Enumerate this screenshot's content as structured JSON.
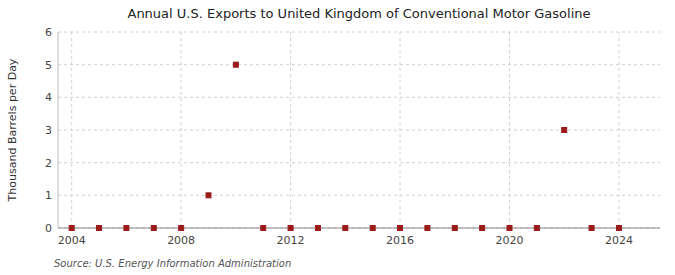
{
  "chart_data": {
    "type": "scatter",
    "title": "Annual U.S. Exports to United Kingdom of Conventional Motor Gasoline",
    "y_label": "Thousand Barrels per Day",
    "annotations": [
      "Source: U.S. Energy Information Administration"
    ],
    "x": [
      2004,
      2005,
      2006,
      2007,
      2008,
      2009,
      2010,
      2011,
      2012,
      2013,
      2014,
      2015,
      2016,
      2017,
      2018,
      2019,
      2020,
      2021,
      2022,
      2023,
      2024
    ],
    "values": [
      0,
      0,
      0,
      0,
      0,
      1,
      5,
      0,
      0,
      0,
      0,
      0,
      0,
      0,
      0,
      0,
      0,
      0,
      3,
      0,
      0
    ],
    "color": "#9B1B1B",
    "marker": "square",
    "xlim": [
      2003.5,
      2025.5
    ],
    "xticks": [
      2004,
      2008,
      2012,
      2016,
      2020,
      2024
    ],
    "ylim": [
      0,
      6
    ],
    "yticks": [
      0,
      1,
      2,
      3,
      4,
      5,
      6
    ],
    "grid": true
  }
}
